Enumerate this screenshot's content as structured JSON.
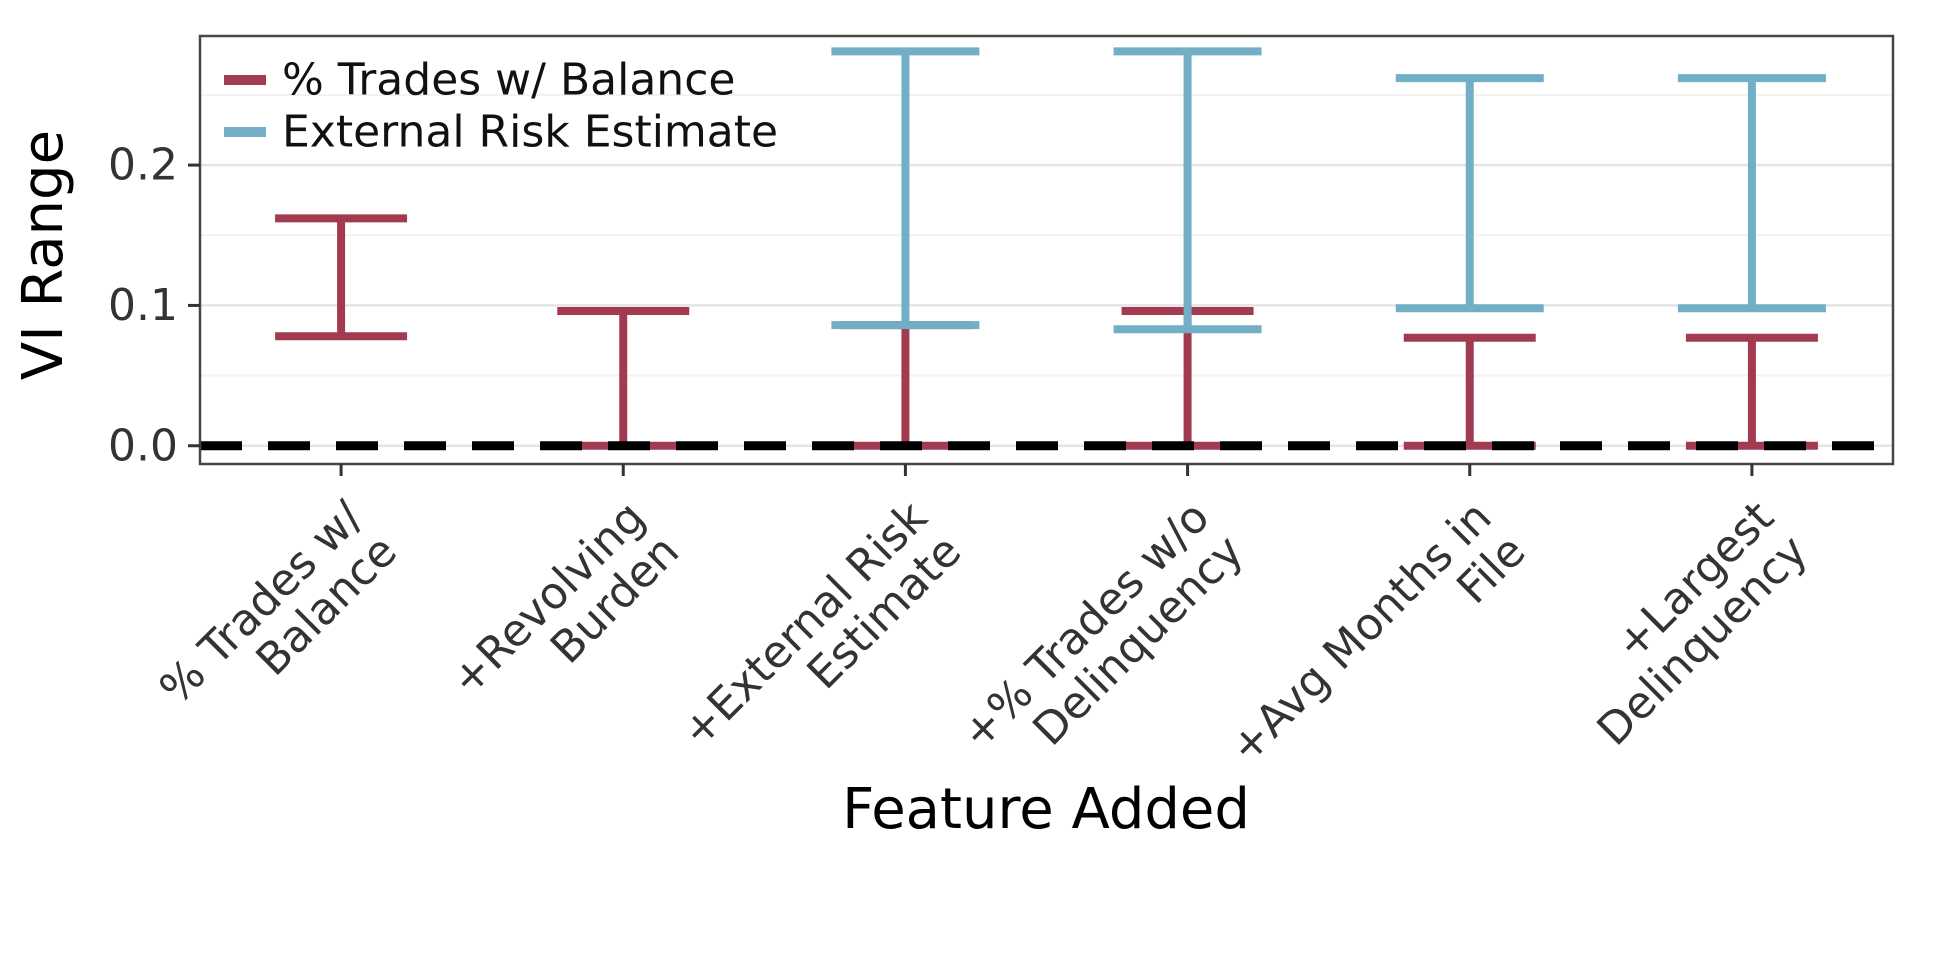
{
  "chart_data": {
    "type": "errorbar",
    "title": "",
    "xlabel": "Feature Added",
    "ylabel": "VI Range",
    "ylim": [
      -0.013,
      0.292
    ],
    "yticks": [
      0.0,
      0.1,
      0.2
    ],
    "ytick_labels": [
      "0.0",
      "0.1",
      "0.2"
    ],
    "yticks_minor": [
      0.05,
      0.15,
      0.25
    ],
    "grid": "on",
    "categories": [
      {
        "lines": [
          "% Trades w/",
          "Balance"
        ]
      },
      {
        "lines": [
          "+Revolving",
          "Burden"
        ]
      },
      {
        "lines": [
          "+External Risk",
          "Estimate"
        ]
      },
      {
        "lines": [
          "+% Trades w/o",
          "Delinquency"
        ]
      },
      {
        "lines": [
          "+Avg Months in",
          "File"
        ]
      },
      {
        "lines": [
          "+Largest",
          "Delinquency"
        ]
      }
    ],
    "series": [
      {
        "name": "% Trades w/ Balance",
        "color": "#A23B50",
        "cap_width": 132,
        "ranges": [
          [
            0.078,
            0.162
          ],
          [
            0.0,
            0.096
          ],
          [
            0.0,
            0.086
          ],
          [
            0.0,
            0.096
          ],
          [
            0.0,
            0.077
          ],
          [
            0.0,
            0.077
          ]
        ]
      },
      {
        "name": "External Risk Estimate",
        "color": "#72AFC7",
        "cap_width": 148,
        "ranges": [
          null,
          null,
          [
            0.086,
            0.281
          ],
          [
            0.083,
            0.281
          ],
          [
            0.098,
            0.262
          ],
          [
            0.098,
            0.262
          ]
        ]
      }
    ],
    "baseline": {
      "value": 0.0,
      "color": "#000000",
      "style": "dashed"
    },
    "legend": {
      "position": "top-left"
    }
  }
}
